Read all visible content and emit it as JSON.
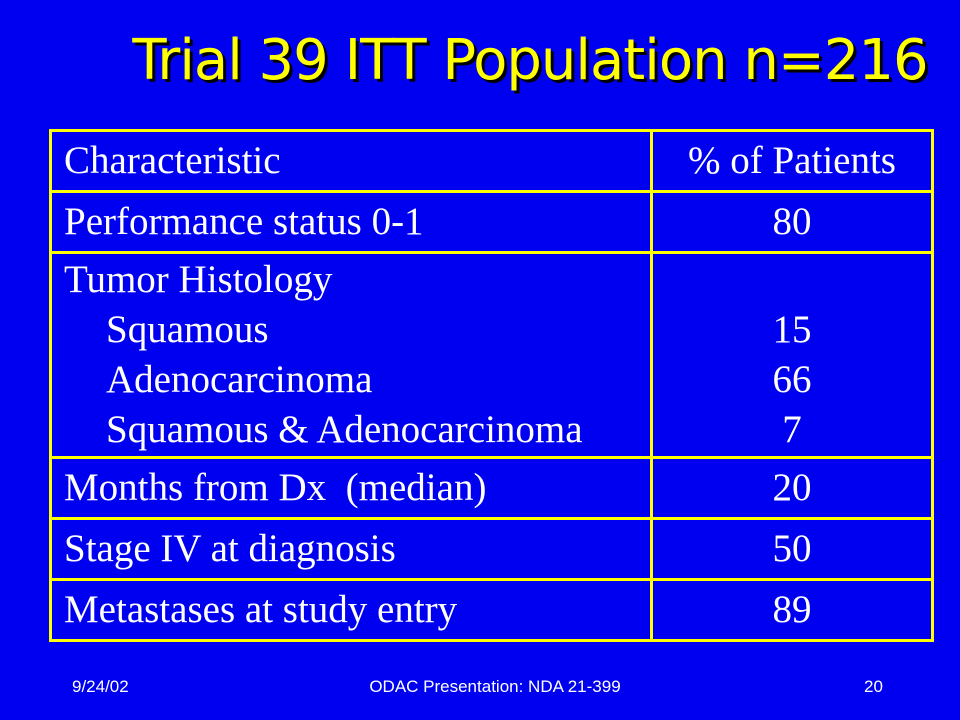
{
  "slide": {
    "title": "Trial 39 ITT Population n=216"
  },
  "table": {
    "header": {
      "characteristic": "Characteristic",
      "percent": "% of Patients"
    },
    "rows": [
      {
        "label": "Performance status 0-1",
        "value": "80"
      },
      {
        "label": "Months from Dx  (median)",
        "value": "20"
      },
      {
        "label": "Stage IV at diagnosis",
        "value": "50"
      },
      {
        "label": "Metastases at study entry",
        "value": "89"
      }
    ],
    "histology": {
      "label": "Tumor Histology",
      "items": [
        {
          "label": "Squamous",
          "value": "15"
        },
        {
          "label": "Adenocarcinoma",
          "value": "66"
        },
        {
          "label": "Squamous & Adenocarcinoma",
          "value": "7"
        }
      ]
    }
  },
  "footer": {
    "date": "9/24/02",
    "presentation": "ODAC Presentation: NDA 21-399",
    "page_number": "20"
  },
  "colors": {
    "background": "#0000f0",
    "title": "#ffff00",
    "border": "#ffff00",
    "text": "#ffffff"
  }
}
